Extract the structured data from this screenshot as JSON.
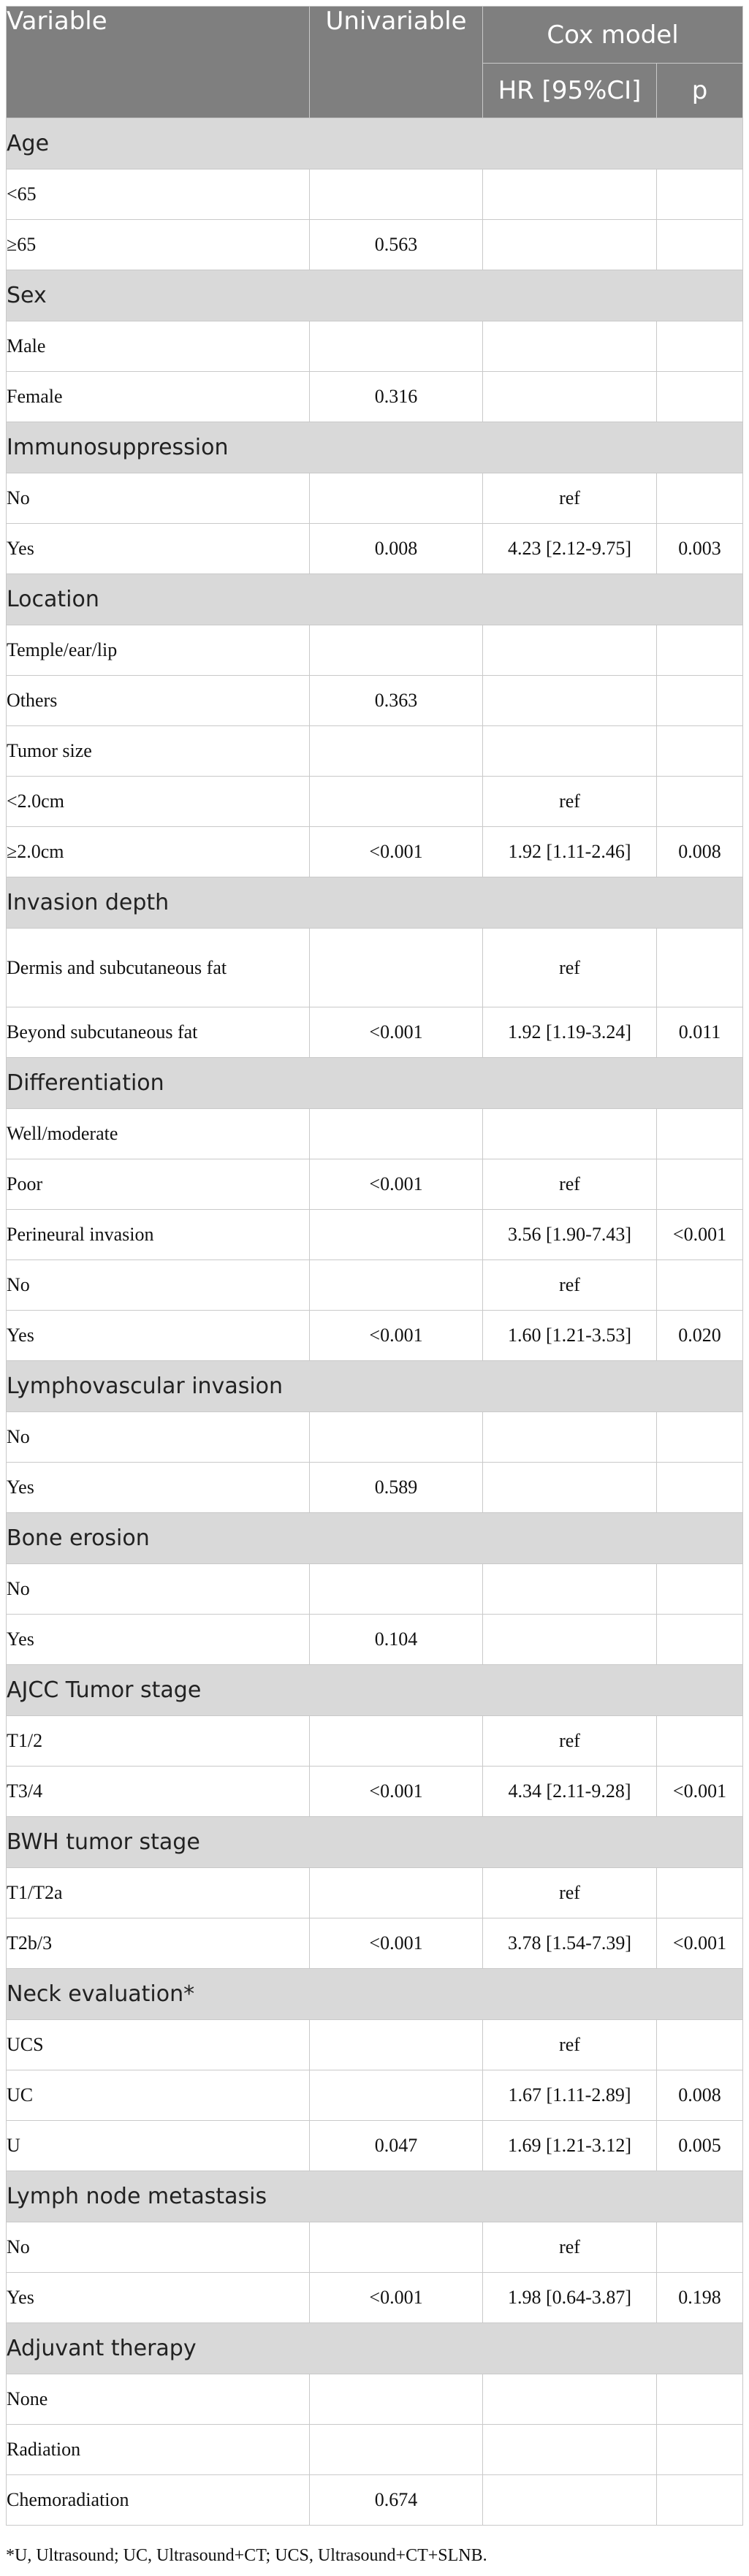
{
  "header": {
    "variable": "Variable",
    "univariable": "Univariable",
    "cox_model": "Cox model",
    "hr": "HR [95%CI]",
    "p": "p"
  },
  "rows": [
    {
      "type": "section",
      "label": "Age"
    },
    {
      "type": "item",
      "indent": true,
      "label": "<65",
      "uni": "",
      "hr": "",
      "p": ""
    },
    {
      "type": "item",
      "indent": true,
      "label": "≥65",
      "uni": "0.563",
      "hr": "",
      "p": ""
    },
    {
      "type": "section",
      "label": "Sex"
    },
    {
      "type": "item",
      "indent": true,
      "label": "Male",
      "uni": "",
      "hr": "",
      "p": ""
    },
    {
      "type": "item",
      "indent": true,
      "label": "Female",
      "uni": "0.316",
      "hr": "",
      "p": ""
    },
    {
      "type": "section",
      "label": "Immunosuppression"
    },
    {
      "type": "item",
      "indent": true,
      "label": "No",
      "uni": "",
      "hr": "ref",
      "p": ""
    },
    {
      "type": "item",
      "indent": true,
      "label": "Yes",
      "uni": "0.008",
      "hr": "4.23 [2.12-9.75]",
      "p": "0.003"
    },
    {
      "type": "section",
      "label": "Location"
    },
    {
      "type": "item",
      "indent": true,
      "label": "Temple/ear/lip",
      "uni": "",
      "hr": "",
      "p": ""
    },
    {
      "type": "item",
      "indent": true,
      "label": "Others",
      "uni": "0.363",
      "hr": "",
      "p": ""
    },
    {
      "type": "item",
      "indent": false,
      "label": "Tumor size",
      "uni": "",
      "hr": "",
      "p": ""
    },
    {
      "type": "item",
      "indent": true,
      "label": "<2.0cm",
      "uni": "",
      "hr": "ref",
      "p": ""
    },
    {
      "type": "item",
      "indent": true,
      "label": "≥2.0cm",
      "uni": "<0.001",
      "hr": "1.92 [1.11-2.46]",
      "p": "0.008"
    },
    {
      "type": "section",
      "label": "Invasion depth"
    },
    {
      "type": "item",
      "indent": true,
      "tall": true,
      "label": "Dermis and subcutaneous fat",
      "uni": "",
      "hr": "ref",
      "p": ""
    },
    {
      "type": "item",
      "indent": true,
      "label": "Beyond subcutaneous fat",
      "uni": "<0.001",
      "hr": "1.92 [1.19-3.24]",
      "p": "0.011"
    },
    {
      "type": "section",
      "label": "Differentiation"
    },
    {
      "type": "item",
      "indent": true,
      "label": "Well/moderate",
      "uni": "",
      "hr": "",
      "p": ""
    },
    {
      "type": "item",
      "indent": true,
      "label": "Poor",
      "uni": "<0.001",
      "hr": "ref",
      "p": ""
    },
    {
      "type": "item",
      "indent": false,
      "label": "Perineural invasion",
      "uni": "",
      "hr": "3.56 [1.90-7.43]",
      "p": "<0.001"
    },
    {
      "type": "item",
      "indent": true,
      "label": "No",
      "uni": "",
      "hr": "ref",
      "p": ""
    },
    {
      "type": "item",
      "indent": true,
      "label": "Yes",
      "uni": "<0.001",
      "hr": "1.60 [1.21-3.53]",
      "p": "0.020"
    },
    {
      "type": "section",
      "label": "Lymphovascular invasion"
    },
    {
      "type": "item",
      "indent": true,
      "label": "No",
      "uni": "",
      "hr": "",
      "p": ""
    },
    {
      "type": "item",
      "indent": true,
      "label": "Yes",
      "uni": "0.589",
      "hr": "",
      "p": ""
    },
    {
      "type": "section",
      "label": "Bone erosion"
    },
    {
      "type": "item",
      "indent": true,
      "label": "No",
      "uni": "",
      "hr": "",
      "p": ""
    },
    {
      "type": "item",
      "indent": true,
      "label": "Yes",
      "uni": "0.104",
      "hr": "",
      "p": ""
    },
    {
      "type": "section",
      "label": "AJCC Tumor stage"
    },
    {
      "type": "item",
      "indent": true,
      "label": "T1/2",
      "uni": "",
      "hr": "ref",
      "p": ""
    },
    {
      "type": "item",
      "indent": true,
      "label": "T3/4",
      "uni": "<0.001",
      "hr": "4.34 [2.11-9.28]",
      "p": "<0.001"
    },
    {
      "type": "section",
      "label": "BWH tumor stage"
    },
    {
      "type": "item",
      "indent": true,
      "label": "T1/T2a",
      "uni": "",
      "hr": "ref",
      "p": ""
    },
    {
      "type": "item",
      "indent": true,
      "label": "T2b/3",
      "uni": "<0.001",
      "hr": "3.78 [1.54-7.39]",
      "p": "<0.001"
    },
    {
      "type": "section",
      "label": "Neck evaluation*"
    },
    {
      "type": "item",
      "indent": true,
      "label": "UCS",
      "uni": "",
      "hr": "ref",
      "p": ""
    },
    {
      "type": "item",
      "indent": true,
      "label": "UC",
      "uni": "",
      "hr": "1.67 [1.11-2.89]",
      "p": "0.008"
    },
    {
      "type": "item",
      "indent": true,
      "label": "U",
      "uni": "0.047",
      "hr": "1.69 [1.21-3.12]",
      "p": "0.005"
    },
    {
      "type": "section",
      "label": "Lymph node metastasis"
    },
    {
      "type": "item",
      "indent": true,
      "label": "No",
      "uni": "",
      "hr": "ref",
      "p": ""
    },
    {
      "type": "item",
      "indent": true,
      "label": "Yes",
      "uni": "<0.001",
      "hr": "1.98 [0.64-3.87]",
      "p": "0.198"
    },
    {
      "type": "section",
      "label": "Adjuvant therapy"
    },
    {
      "type": "item",
      "indent": true,
      "label": "None",
      "uni": "",
      "hr": "",
      "p": ""
    },
    {
      "type": "item",
      "indent": true,
      "label": "Radiation",
      "uni": "",
      "hr": "",
      "p": ""
    },
    {
      "type": "item",
      "indent": true,
      "label": "Chemoradiation",
      "uni": "0.674",
      "hr": "",
      "p": ""
    }
  ],
  "footnote": "*U, Ultrasound; UC, Ultrasound+CT; UCS, Ultrasound+CT+SLNB."
}
